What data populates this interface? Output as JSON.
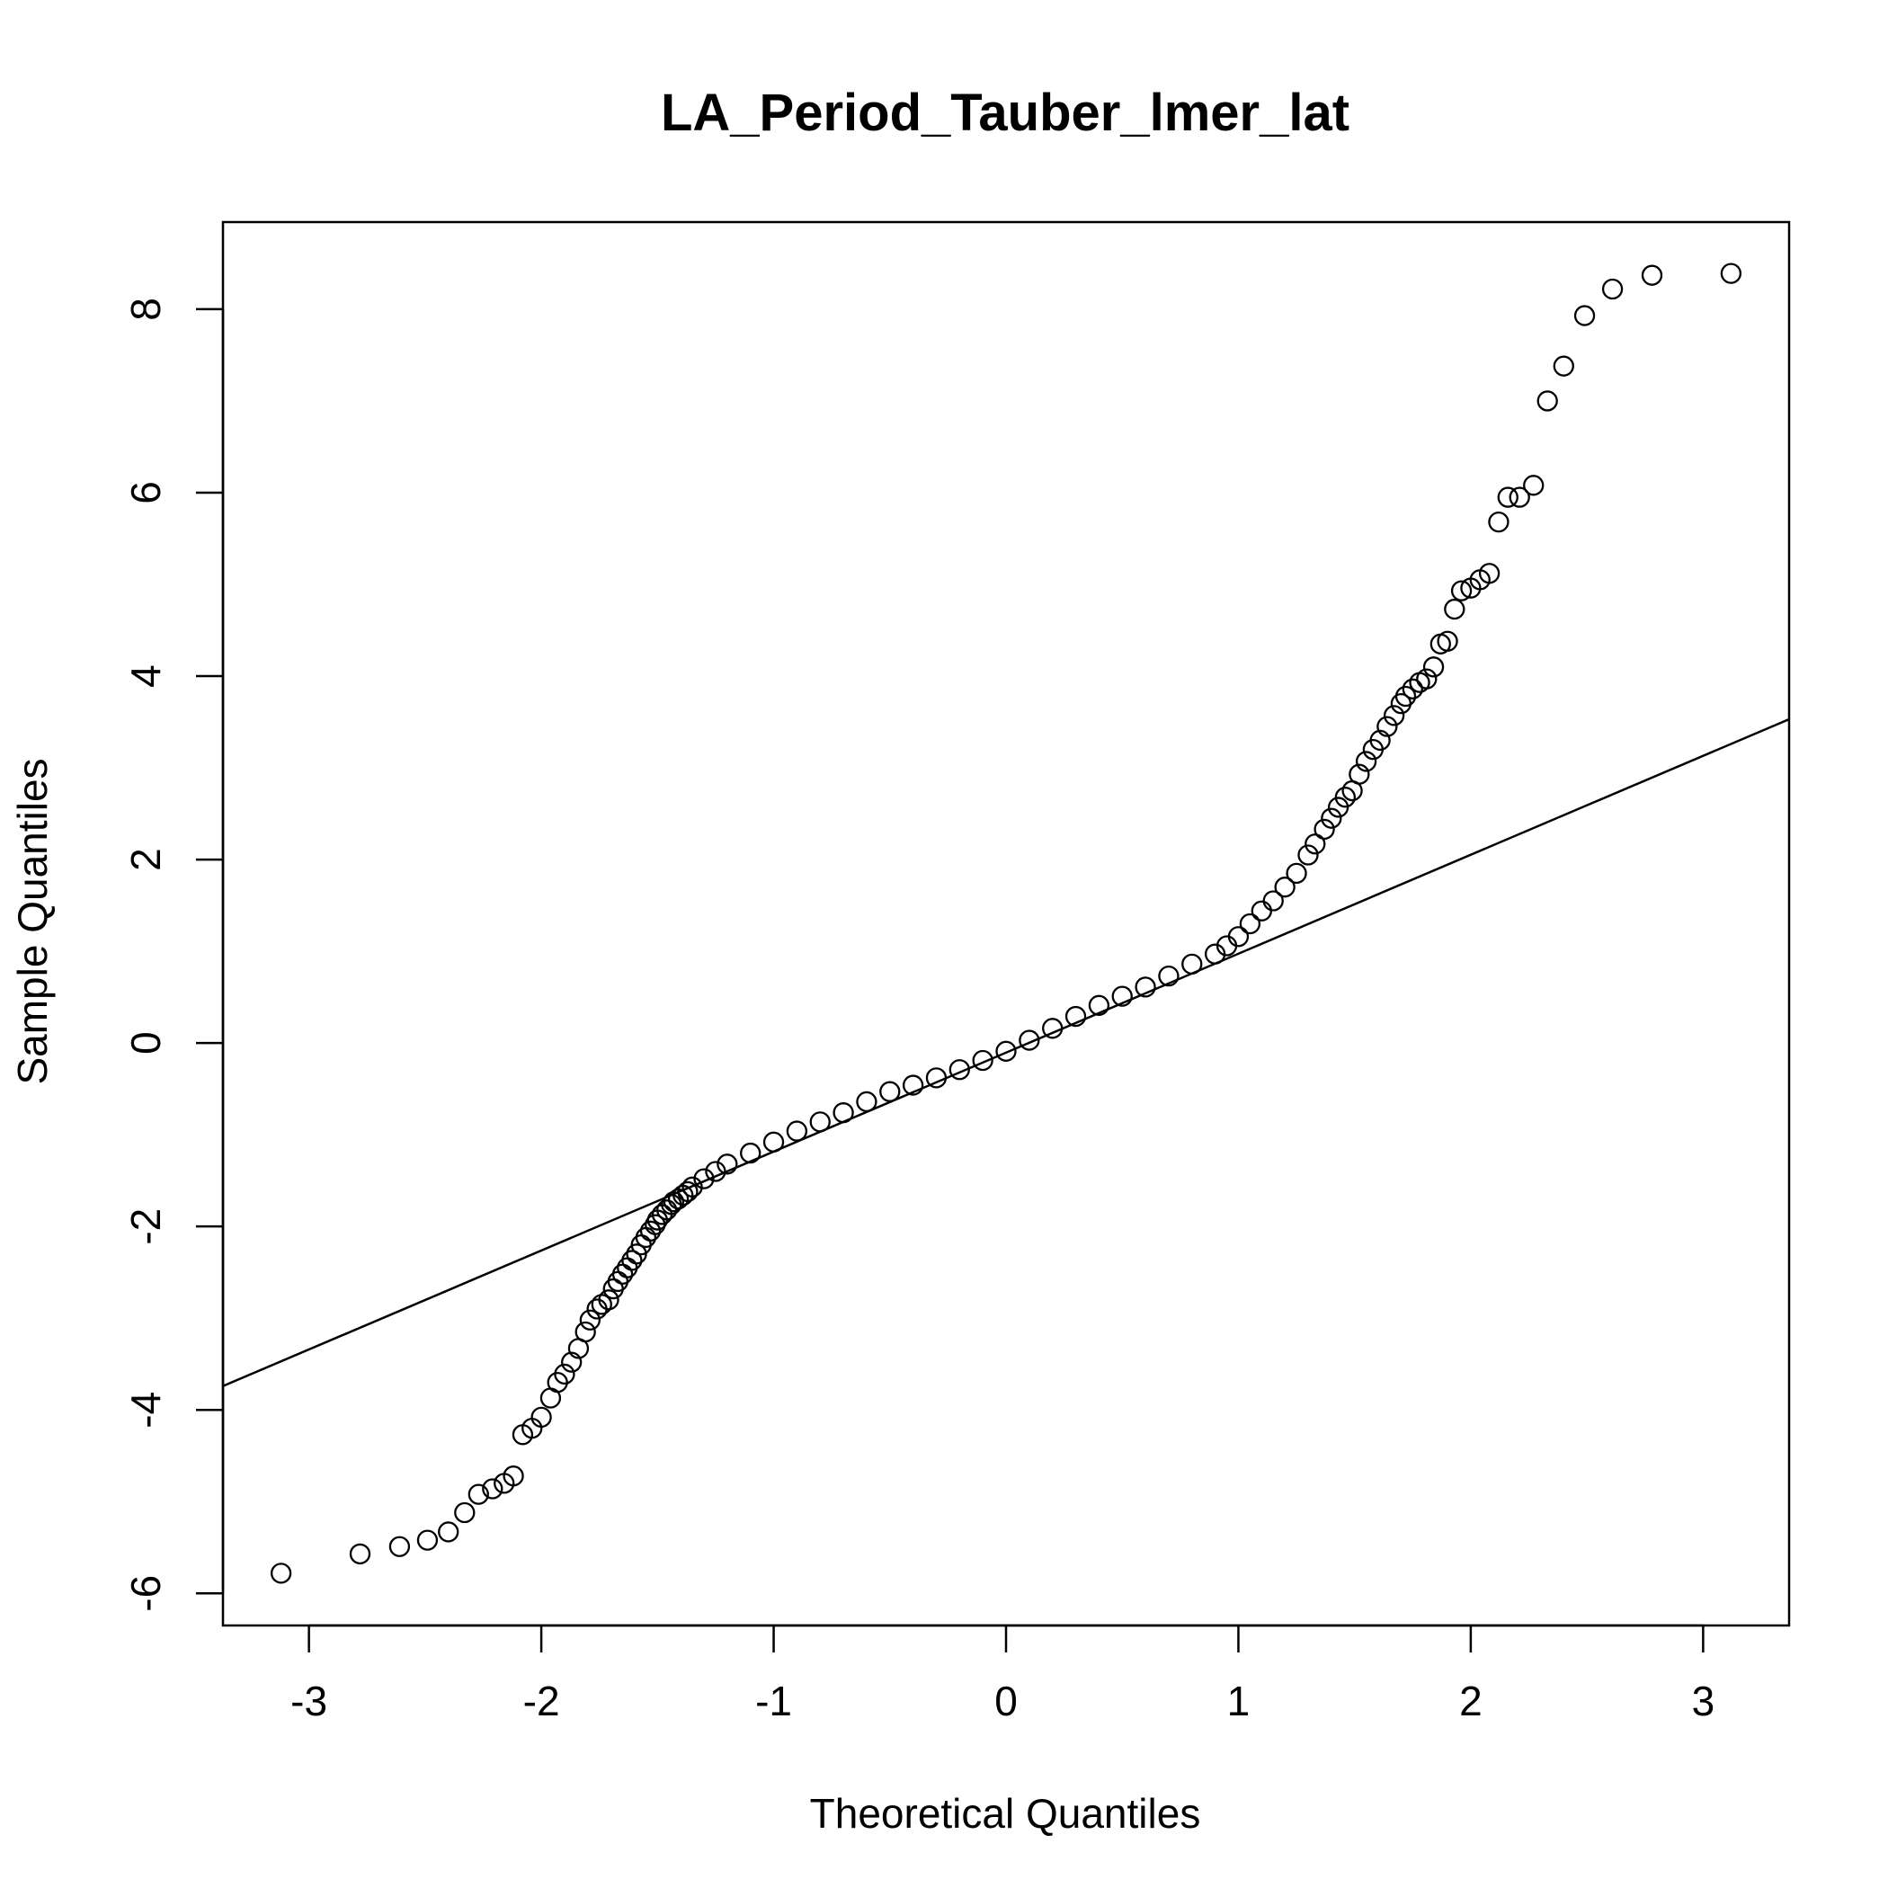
{
  "chart_data": {
    "type": "scatter",
    "subtype": "normal-qq-plot",
    "title": "LA_Period_Tauber_lmer_lat",
    "xlabel": "Theoretical Quantiles",
    "ylabel": "Sample Quantiles",
    "xlim": [
      -3.37,
      3.37
    ],
    "ylim": [
      -6.35,
      8.95
    ],
    "xticks": [
      -3,
      -2,
      -1,
      0,
      1,
      2,
      3
    ],
    "yticks": [
      -6,
      -4,
      -2,
      0,
      2,
      4,
      6,
      8
    ],
    "xtick_labels": [
      "-3",
      "-2",
      "-1",
      "0",
      "1",
      "2",
      "3"
    ],
    "ytick_labels": [
      "-6",
      "-4",
      "-2",
      "0",
      "2",
      "4",
      "6",
      "8"
    ],
    "grid": false,
    "legend": "none",
    "marker": "open-circle",
    "reference_line": {
      "x": [
        -3.37,
        3.37
      ],
      "y": [
        -3.74,
        3.53
      ]
    },
    "points": {
      "x": [
        -3.12,
        -2.78,
        -2.61,
        -2.49,
        -2.4,
        -2.33,
        -2.27,
        -2.21,
        -2.16,
        -2.12,
        -2.08,
        -2.04,
        -2.0,
        -1.96,
        -1.93,
        -1.9,
        -1.87,
        -1.84,
        -1.81,
        -1.79,
        -1.76,
        -1.74,
        -1.71,
        -1.69,
        -1.67,
        -1.65,
        -1.63,
        -1.61,
        -1.59,
        -1.57,
        -1.55,
        -1.53,
        -1.51,
        -1.5,
        -1.48,
        -1.46,
        -1.44,
        -1.43,
        -1.41,
        -1.39,
        -1.37,
        -1.35,
        -1.3,
        -1.25,
        -1.2,
        -1.1,
        -1.0,
        -0.9,
        -0.8,
        -0.7,
        -0.6,
        -0.5,
        -0.4,
        -0.3,
        -0.2,
        -0.1,
        0.0,
        0.1,
        0.2,
        0.3,
        0.4,
        0.5,
        0.6,
        0.7,
        0.8,
        0.9,
        0.95,
        1.0,
        1.05,
        1.1,
        1.15,
        1.2,
        1.25,
        1.3,
        1.33,
        1.37,
        1.4,
        1.43,
        1.46,
        1.49,
        1.52,
        1.55,
        1.58,
        1.61,
        1.64,
        1.67,
        1.7,
        1.72,
        1.75,
        1.78,
        1.81,
        1.84,
        1.87,
        1.9,
        1.93,
        1.96,
        2.0,
        2.04,
        2.08,
        2.12,
        2.16,
        2.21,
        2.27,
        2.33,
        2.4,
        2.49,
        2.61,
        2.78,
        3.12
      ],
      "y": [
        -5.78,
        -5.57,
        -5.49,
        -5.42,
        -5.33,
        -5.12,
        -4.92,
        -4.86,
        -4.8,
        -4.72,
        -4.27,
        -4.2,
        -4.08,
        -3.87,
        -3.7,
        -3.61,
        -3.48,
        -3.33,
        -3.15,
        -3.02,
        -2.9,
        -2.85,
        -2.8,
        -2.68,
        -2.6,
        -2.52,
        -2.45,
        -2.37,
        -2.3,
        -2.2,
        -2.12,
        -2.05,
        -1.98,
        -1.93,
        -1.87,
        -1.82,
        -1.76,
        -1.73,
        -1.7,
        -1.66,
        -1.62,
        -1.57,
        -1.48,
        -1.4,
        -1.32,
        -1.2,
        -1.08,
        -0.96,
        -0.86,
        -0.76,
        -0.64,
        -0.53,
        -0.46,
        -0.38,
        -0.29,
        -0.19,
        -0.09,
        0.03,
        0.16,
        0.29,
        0.41,
        0.51,
        0.61,
        0.73,
        0.86,
        0.97,
        1.06,
        1.16,
        1.3,
        1.44,
        1.55,
        1.7,
        1.85,
        2.05,
        2.17,
        2.33,
        2.45,
        2.57,
        2.68,
        2.75,
        2.93,
        3.07,
        3.2,
        3.3,
        3.45,
        3.57,
        3.7,
        3.78,
        3.86,
        3.93,
        3.97,
        4.1,
        4.35,
        4.38,
        4.73,
        4.93,
        4.96,
        5.05,
        5.12,
        5.68,
        5.95,
        5.95,
        6.08,
        7.0,
        7.38,
        7.93,
        8.22,
        8.37,
        8.39
      ]
    }
  }
}
